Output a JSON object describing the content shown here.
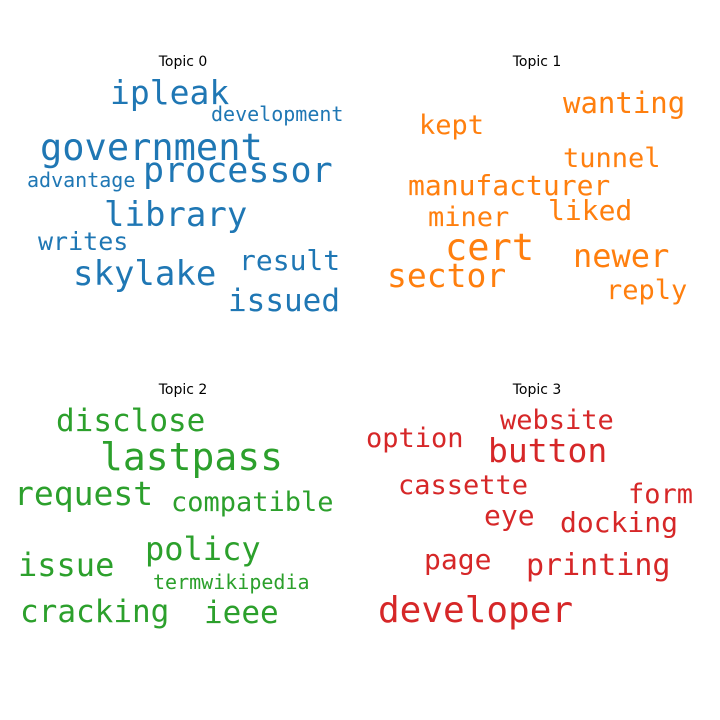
{
  "chart_data": [
    {
      "type": "wordcloud",
      "title": "Topic 0",
      "color": "#1f77b4",
      "words": [
        "ipleak",
        "development",
        "government",
        "processor",
        "advantage",
        "library",
        "writes",
        "result",
        "skylake",
        "issued"
      ]
    },
    {
      "type": "wordcloud",
      "title": "Topic 1",
      "color": "#ff7f0e",
      "words": [
        "wanting",
        "kept",
        "tunnel",
        "manufacturer",
        "liked",
        "miner",
        "cert",
        "newer",
        "sector",
        "reply"
      ]
    },
    {
      "type": "wordcloud",
      "title": "Topic 2",
      "color": "#2ca02c",
      "words": [
        "disclose",
        "lastpass",
        "request",
        "compatible",
        "policy",
        "issue",
        "termwikipedia",
        "cracking",
        "ieee"
      ]
    },
    {
      "type": "wordcloud",
      "title": "Topic 3",
      "color": "#d62728",
      "words": [
        "website",
        "option",
        "button",
        "cassette",
        "form",
        "eye",
        "docking",
        "page",
        "printing",
        "developer"
      ]
    }
  ]
}
